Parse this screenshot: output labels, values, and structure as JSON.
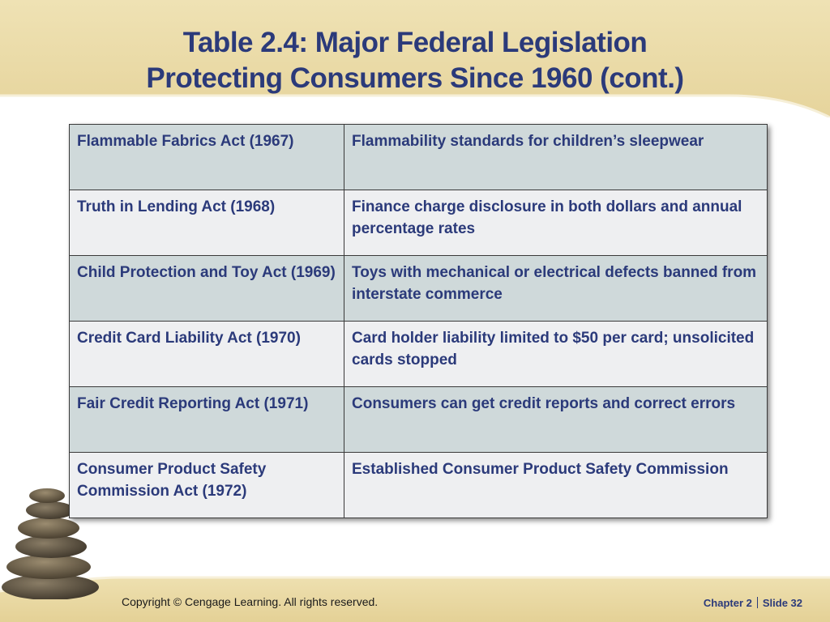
{
  "slide": {
    "title_line1": "Table 2.4: Major Federal Legislation",
    "title_line2": "Protecting Consumers Since 1960 (cont.)"
  },
  "table": {
    "rows": [
      {
        "act": "Flammable Fabrics Act (1967)",
        "description": "Flammability standards for children’s sleepwear"
      },
      {
        "act": "Truth in Lending Act (1968)",
        "description": "Finance charge disclosure in both dollars and annual percentage rates"
      },
      {
        "act": "Child Protection and Toy Act (1969)",
        "description": "Toys with mechanical or electrical defects banned from interstate commerce"
      },
      {
        "act": "Credit Card Liability Act (1970)",
        "description": "Card holder liability limited to $50 per card; unsolicited cards stopped"
      },
      {
        "act": "Fair Credit Reporting Act (1971)",
        "description": "Consumers can get credit reports and correct errors"
      },
      {
        "act": "Consumer Product Safety Commission Act (1972)",
        "description": "Established Consumer Product Safety Commission"
      }
    ]
  },
  "footer": {
    "copyright": "Copyright © Cengage Learning. All rights reserved.",
    "chapter": "Chapter 2",
    "slide": "Slide 32"
  },
  "theme": {
    "title_color": "#2b3a7a",
    "band_color": "#e7d59f",
    "row_shade_a": "#cfd9da",
    "row_shade_b": "#eeeff1"
  }
}
